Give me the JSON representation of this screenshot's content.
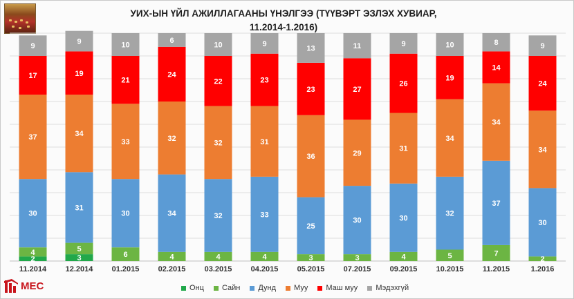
{
  "title": {
    "line1": "УИХ-ЫН ҮЙЛ АЖИЛЛАГААНЫ ҮНЭЛГЭЭ (ТҮҮВЭРТ ЭЗЛЭХ ХУВИАР,",
    "line2": "11.2014-1.2016)"
  },
  "logo": {
    "text": "MEC"
  },
  "colors": {
    "onts": "#21a84a",
    "sain": "#6cb543",
    "dund": "#5b9bd5",
    "muu": "#ed7d31",
    "mash_muu": "#ff0000",
    "medekhgui": "#a5a5a5"
  },
  "chart_data": {
    "type": "bar",
    "stacked": true,
    "categories": [
      "11.2014",
      "12.2014",
      "01.2015",
      "02.2015",
      "03.2015",
      "04.2015",
      "05.2015",
      "07.2015",
      "09.2015",
      "10.2015",
      "11.2015",
      "1.2016"
    ],
    "series": [
      {
        "key": "onts",
        "name": "Онц",
        "values": [
          2,
          3,
          0,
          0,
          0,
          0,
          0,
          0,
          0,
          0,
          0,
          0
        ]
      },
      {
        "key": "sain",
        "name": "Сайн",
        "values": [
          4,
          5,
          6,
          4,
          4,
          4,
          3,
          3,
          4,
          5,
          7,
          2
        ]
      },
      {
        "key": "dund",
        "name": "Дунд",
        "values": [
          30,
          31,
          30,
          34,
          32,
          33,
          25,
          30,
          30,
          32,
          37,
          30
        ]
      },
      {
        "key": "muu",
        "name": "Муу",
        "values": [
          37,
          34,
          33,
          32,
          32,
          31,
          36,
          29,
          31,
          34,
          34,
          34
        ]
      },
      {
        "key": "mash_muu",
        "name": "Маш муу",
        "values": [
          17,
          19,
          21,
          24,
          22,
          23,
          23,
          27,
          26,
          19,
          14,
          24
        ]
      },
      {
        "key": "medekhgui",
        "name": "Мэдэхгүй",
        "values": [
          9,
          9,
          10,
          6,
          10,
          9,
          13,
          11,
          9,
          10,
          8,
          9
        ]
      }
    ],
    "ylim": [
      0,
      100
    ],
    "grid": true,
    "legend_position": "bottom"
  }
}
